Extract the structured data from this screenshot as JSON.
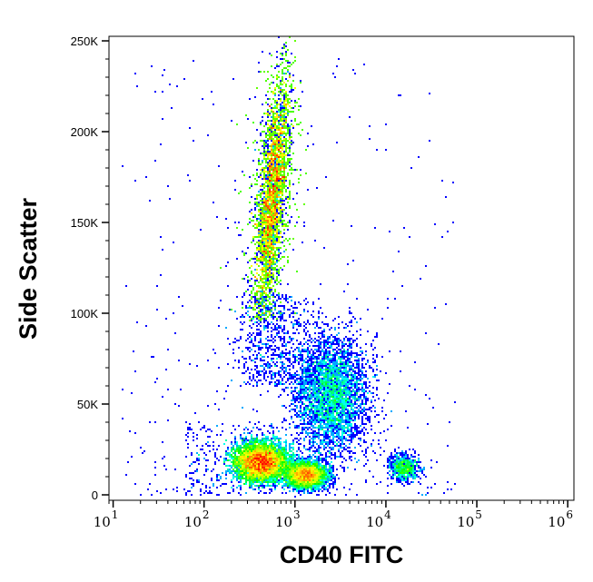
{
  "chart_data": {
    "type": "heatmap",
    "subtype": "flow-cytometry-density-dot-plot",
    "xlabel": "CD40 FITC",
    "ylabel": "Side Scatter",
    "x_scale": "log10",
    "xlim": [
      9,
      1170000
    ],
    "ylim": [
      -3000,
      252500
    ],
    "x_ticks": [
      {
        "base": "10",
        "exp": "1",
        "value": 10
      },
      {
        "base": "10",
        "exp": "2",
        "value": 100
      },
      {
        "base": "10",
        "exp": "3",
        "value": 1000
      },
      {
        "base": "10",
        "exp": "4",
        "value": 10000
      },
      {
        "base": "10",
        "exp": "5",
        "value": 100000
      },
      {
        "base": "10",
        "exp": "6",
        "value": 1000000
      }
    ],
    "y_ticks": [
      {
        "label": "0",
        "value": 0
      },
      {
        "label": "50K",
        "value": 50000
      },
      {
        "label": "100K",
        "value": 100000
      },
      {
        "label": "150K",
        "value": 150000
      },
      {
        "label": "200K",
        "value": 200000
      },
      {
        "label": "250K",
        "value": 250000
      }
    ],
    "grid": false,
    "colormap": [
      "#0000ff",
      "#00ffff",
      "#00ff00",
      "#ffff00",
      "#ff0000"
    ],
    "populations": [
      {
        "x_center": 600,
        "y_range": [
          95000,
          255000
        ],
        "y_center": 165000,
        "relative_events": 25000,
        "shape": "diagonal-elongated"
      },
      {
        "x_center": 420,
        "y_center": 18000,
        "relative_events": 12000
      },
      {
        "x_center": 1320,
        "y_center": 11000,
        "relative_events": 5000
      },
      {
        "x_center": 2500,
        "y_center": 55000,
        "relative_events": 4000
      },
      {
        "x_center": 16000,
        "y_center": 15000,
        "relative_events": 800
      }
    ]
  }
}
